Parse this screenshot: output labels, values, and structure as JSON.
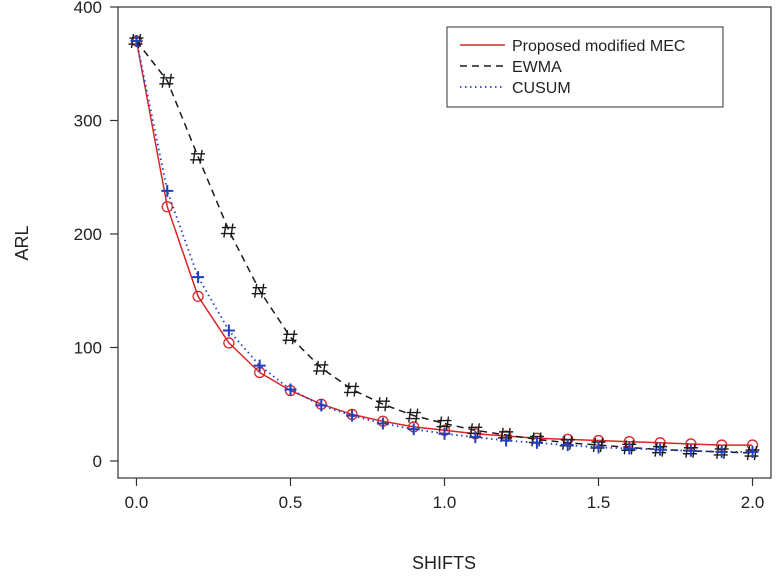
{
  "chart_data": {
    "type": "line",
    "title": "",
    "xlabel": "SHIFTS",
    "ylabel": "ARL",
    "xlim": [
      -0.06,
      2.06
    ],
    "ylim": [
      -15,
      400
    ],
    "xticks": [
      0.0,
      0.5,
      1.0,
      1.5,
      2.0
    ],
    "xtick_labels": [
      "0.0",
      "0.5",
      "1.0",
      "1.5",
      "2.0"
    ],
    "yticks": [
      0,
      100,
      200,
      300,
      400
    ],
    "ytick_labels": [
      "0",
      "100",
      "200",
      "300",
      "400"
    ],
    "grid": false,
    "legend_position": "top-right",
    "x": [
      0.0,
      0.1,
      0.2,
      0.3,
      0.4,
      0.5,
      0.6,
      0.7,
      0.8,
      0.9,
      1.0,
      1.1,
      1.2,
      1.3,
      1.4,
      1.5,
      1.6,
      1.7,
      1.8,
      1.9,
      2.0
    ],
    "series": [
      {
        "name": "Proposed modified MEC",
        "color": "#d62728",
        "line": "solid",
        "marker": "circle",
        "values": [
          370,
          224,
          145,
          104,
          78,
          62,
          50,
          41,
          35,
          30,
          27,
          24,
          22,
          20,
          19,
          18,
          17,
          16,
          15,
          14,
          14
        ]
      },
      {
        "name": "EWMA",
        "color": "#1a1a1a",
        "line": "dashed",
        "marker": "#",
        "values": [
          370,
          335,
          268,
          203,
          150,
          109,
          82,
          63,
          50,
          40,
          33,
          27,
          23,
          19,
          16,
          14,
          12,
          10,
          9,
          8,
          7
        ]
      },
      {
        "name": "CUSUM",
        "color": "#1f3fbf",
        "line": "dotted",
        "marker": "plus",
        "values": [
          370,
          238,
          162,
          115,
          84,
          63,
          49,
          40,
          33,
          28,
          24,
          21,
          18,
          16,
          14,
          12,
          11,
          10,
          9,
          8,
          8
        ]
      }
    ]
  }
}
